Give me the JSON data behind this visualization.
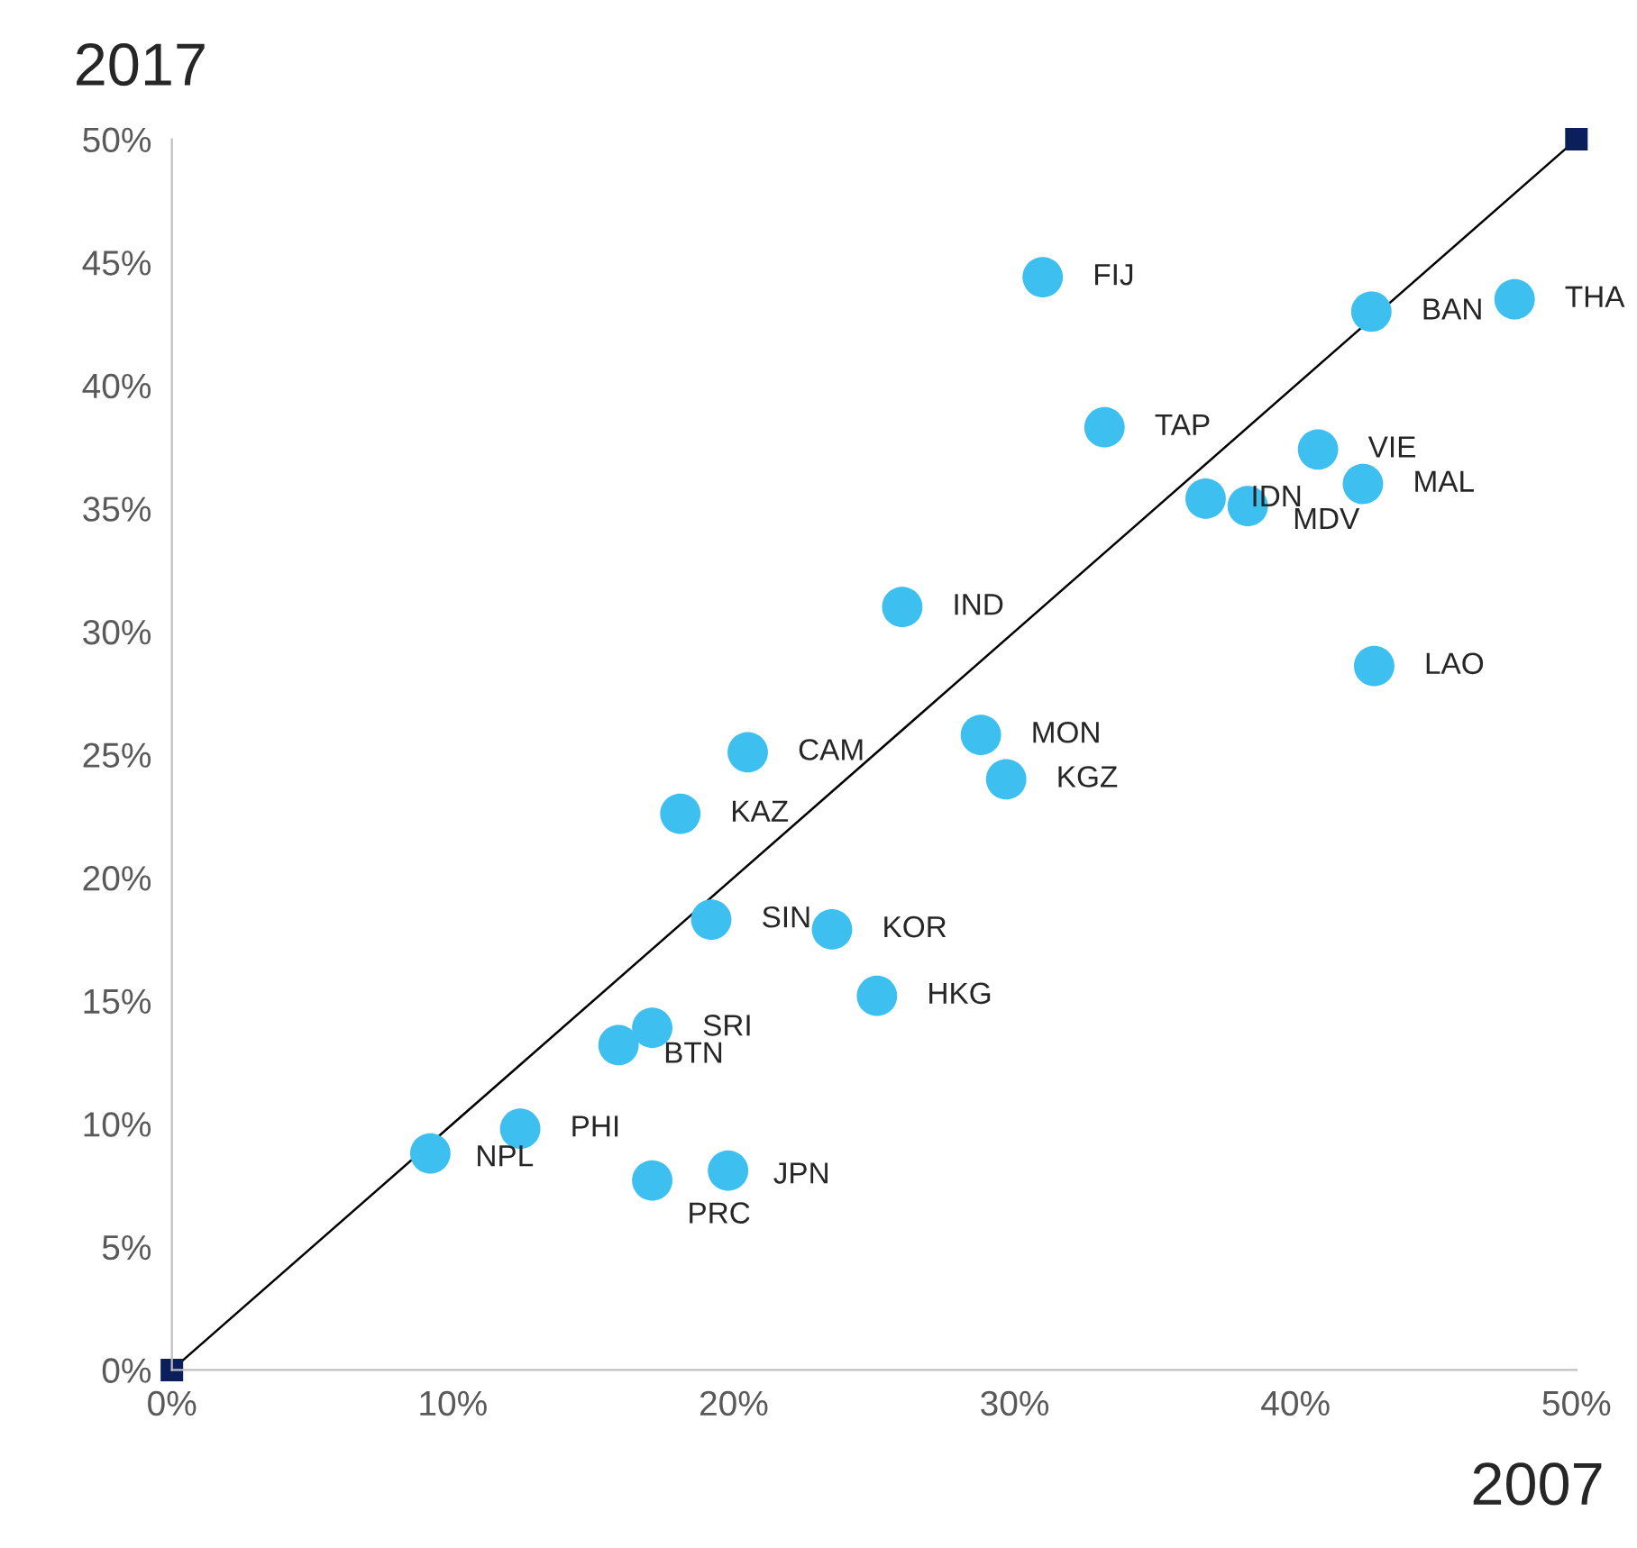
{
  "chart_data": {
    "type": "scatter",
    "xlabel": "2007",
    "ylabel": "2017",
    "xlim": [
      0,
      50
    ],
    "ylim": [
      0,
      50
    ],
    "xticks": [
      {
        "value": 0,
        "label": "0%"
      },
      {
        "value": 10,
        "label": "10%"
      },
      {
        "value": 20,
        "label": "20%"
      },
      {
        "value": 30,
        "label": "30%"
      },
      {
        "value": 40,
        "label": "40%"
      },
      {
        "value": 50,
        "label": "50%"
      }
    ],
    "yticks": [
      {
        "value": 0,
        "label": "0%"
      },
      {
        "value": 5,
        "label": "5%"
      },
      {
        "value": 10,
        "label": "10%"
      },
      {
        "value": 15,
        "label": "15%"
      },
      {
        "value": 20,
        "label": "20%"
      },
      {
        "value": 25,
        "label": "25%"
      },
      {
        "value": 30,
        "label": "30%"
      },
      {
        "value": 35,
        "label": "35%"
      },
      {
        "value": 40,
        "label": "40%"
      },
      {
        "value": 45,
        "label": "45%"
      },
      {
        "value": 50,
        "label": "50%"
      }
    ],
    "grid": false,
    "legend": false,
    "series": [
      {
        "color": "#3dbff0",
        "marker": "circle",
        "x": [
          31.0,
          42.7,
          47.8,
          33.2,
          40.8,
          42.4,
          36.8,
          38.3,
          26.0,
          42.8,
          28.8,
          29.7,
          20.5,
          18.1,
          19.2,
          23.5,
          25.1,
          17.1,
          15.9,
          12.4,
          9.2,
          19.8,
          17.1
        ],
        "values": [
          44.4,
          43.0,
          43.5,
          38.3,
          37.4,
          36.0,
          35.4,
          35.1,
          31.0,
          28.6,
          25.8,
          24.0,
          25.1,
          22.6,
          18.3,
          17.9,
          15.2,
          13.9,
          13.2,
          9.8,
          8.8,
          8.1,
          7.7
        ]
      },
      {
        "type": "line",
        "color": "#0a1f5c",
        "marker": "square",
        "line_style": "solid",
        "x": [
          0,
          50
        ],
        "values": [
          0,
          50
        ]
      }
    ],
    "annotations": [
      {
        "text": "FIJ",
        "x": 31.0,
        "y": 44.4
      },
      {
        "text": "BAN",
        "x": 42.7,
        "y": 43.0
      },
      {
        "text": "THA",
        "x": 47.8,
        "y": 43.5
      },
      {
        "text": "TAP",
        "x": 33.2,
        "y": 38.3
      },
      {
        "text": "VIE",
        "x": 40.8,
        "y": 37.4
      },
      {
        "text": "MAL",
        "x": 42.4,
        "y": 36.0
      },
      {
        "text": "IDN",
        "x": 36.8,
        "y": 35.4
      },
      {
        "text": "MDV",
        "x": 38.3,
        "y": 35.1
      },
      {
        "text": "IND",
        "x": 26.0,
        "y": 31.0
      },
      {
        "text": "LAO",
        "x": 42.8,
        "y": 28.6
      },
      {
        "text": "MON",
        "x": 28.8,
        "y": 25.8
      },
      {
        "text": "KGZ",
        "x": 29.7,
        "y": 24.0
      },
      {
        "text": "CAM",
        "x": 20.5,
        "y": 25.1
      },
      {
        "text": "KAZ",
        "x": 18.1,
        "y": 22.6
      },
      {
        "text": "SIN",
        "x": 19.2,
        "y": 18.3
      },
      {
        "text": "KOR",
        "x": 23.5,
        "y": 17.9
      },
      {
        "text": "HKG",
        "x": 25.1,
        "y": 15.2
      },
      {
        "text": "SRI",
        "x": 17.1,
        "y": 13.9
      },
      {
        "text": "BTN",
        "x": 15.9,
        "y": 13.2
      },
      {
        "text": "PHI",
        "x": 12.4,
        "y": 9.8
      },
      {
        "text": "NPL",
        "x": 9.2,
        "y": 8.8
      },
      {
        "text": "JPN",
        "x": 19.8,
        "y": 8.1
      },
      {
        "text": "PRC",
        "x": 17.1,
        "y": 7.7
      }
    ]
  }
}
